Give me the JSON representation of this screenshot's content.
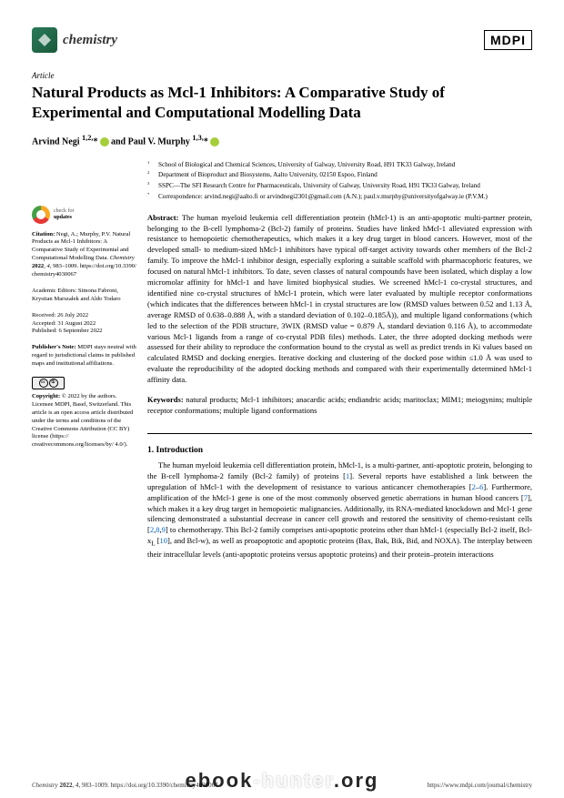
{
  "header": {
    "journal": "chemistry",
    "publisher": "MDPI"
  },
  "article": {
    "type": "Article",
    "title": "Natural Products as Mcl-1 Inhibitors: A Comparative Study of Experimental and Computational Modelling Data",
    "authors_html": "Arvind Negi 1,2,* and Paul V. Murphy 1,3,*"
  },
  "affiliations": [
    {
      "sup": "1",
      "text": "School of Biological and Chemical Sciences, University of Galway, University Road, H91 TK33 Galway, Ireland"
    },
    {
      "sup": "2",
      "text": "Department of Bioproduct and Biosystems, Aalto University, 02150 Espoo, Finland"
    },
    {
      "sup": "3",
      "text": "SSPC—The SFI Research Centre for Pharmaceuticals, University of Galway, University Road, H91 TK33 Galway, Ireland"
    },
    {
      "sup": "*",
      "text": "Correspondence: arvind.negi@aalto.fi or arvindnegi2301@gmail.com (A.N.); paul.v.murphy@universityofgalway.ie (P.V.M.)"
    }
  ],
  "abstract": {
    "label": "Abstract:",
    "text": "The human myeloid leukemia cell differentiation protein (hMcl-1) is an anti-apoptotic multi-partner protein, belonging to the B-cell lymphoma-2 (Bcl-2) family of proteins. Studies have linked hMcl-1 alleviated expression with resistance to hemopoietic chemotherapeutics, which makes it a key drug target in blood cancers. However, most of the developed small- to medium-sized hMcl-1 inhibitors have typical off-target activity towards other members of the Bcl-2 family. To improve the hMcl-1 inhibitor design, especially exploring a suitable scaffold with pharmacophoric features, we focused on natural hMcl-1 inhibitors. To date, seven classes of natural compounds have been isolated, which display a low micromolar affinity for hMcl-1 and have limited biophysical studies. We screened hMcl-1 co-crystal structures, and identified nine co-crystal structures of hMcl-1 protein, which were later evaluated by multiple receptor conformations (which indicates that the differences between hMcl-1 in crystal structures are low (RMSD values between 0.52 and 1.13 Å, average RMSD of 0.638–0.888 Å, with a standard deviation of 0.102–0.185Å)), and multiple ligand conformations (which led to the selection of the PDB structure, 3WIX (RMSD value = 0.879 Å, standard deviation 0.116 Å), to accommodate various Mcl-1 ligands from a range of co-crystal PDB files) methods. Later, the three adopted docking methods were assessed for their ability to reproduce the conformation bound to the crystal as well as predict trends in Ki values based on calculated RMSD and docking energies. Iterative docking and clustering of the docked pose within ≤1.0 Å was used to evaluate the reproducibility of the adopted docking methods and compared with their experimentally determined hMcl-1 affinity data."
  },
  "keywords": {
    "label": "Keywords:",
    "text": "natural products; Mcl-1 inhibitors; anacardic acids; endiandric acids; maritoclax; MIM1; meiogynins; multiple receptor conformations; multiple ligand conformations"
  },
  "section1": {
    "title": "1. Introduction",
    "body": "The human myeloid leukemia cell differentiation protein, hMcl-1, is a multi-partner, anti-apoptotic protein, belonging to the B-cell lymphoma-2 family (Bcl-2 family) of proteins [1]. Several reports have established a link between the upregulation of hMcl-1 with the development of resistance to various anticancer chemotherapies [2–6]. Furthermore, amplification of the hMcl-1 gene is one of the most commonly observed genetic aberrations in human blood cancers [7], which makes it a key drug target in hemopoietic malignancies. Additionally, its RNA-mediated knockdown and Mcl-1 gene silencing demonstrated a substantial decrease in cancer cell growth and restored the sensitivity of chemo-resistant cells [2,8,9] to chemotherapy. This Bcl-2 family comprises anti-apoptotic proteins other than hMcl-1 (especially Bcl-2 itself, Bcl-xL [10], and Bcl-w), as well as proapoptotic and apoptotic proteins (Bax, Bak, Bik, Bid, and NOXA). The interplay between their intracellular levels (anti-apoptotic proteins versus apoptotic proteins) and their protein–protein interactions"
  },
  "sidebar": {
    "check_l1": "check for",
    "check_l2": "updates",
    "citation": "Citation: Negi, A.; Murphy, P.V. Natural Products as Mcl-1 Inhibitors: A Comparative Study of Experimental and Computational Modelling Data. Chemistry 2022, 4, 983–1009. https://doi.org/10.3390/chemistry4030067",
    "editors": "Academic Editors: Simona Fabroni, Krystian Marszałek and Aldo Todaro",
    "dates": "Received: 26 July 2022\nAccepted: 31 August 2022\nPublished: 6 September 2022",
    "publishers_note": "Publisher's Note: MDPI stays neutral with regard to jurisdictional claims in published maps and institutional affiliations.",
    "copyright": "Copyright: © 2022 by the authors. Licensee MDPI, Basel, Switzerland. This article is an open access article distributed under the terms and conditions of the Creative Commons Attribution (CC BY) license (https://creativecommons.org/licenses/by/4.0/)."
  },
  "footer": {
    "left": "Chemistry 2022, 4, 983–1009. https://doi.org/10.3390/chemistry4030067",
    "right": "https://www.mdpi.com/journal/chemistry"
  },
  "watermark": "ebook-hunter.org",
  "colors": {
    "link": "#0066cc",
    "orcid": "#a6ce39",
    "logo_grad_a": "#2a7a5a",
    "logo_grad_b": "#1a5a3a"
  }
}
